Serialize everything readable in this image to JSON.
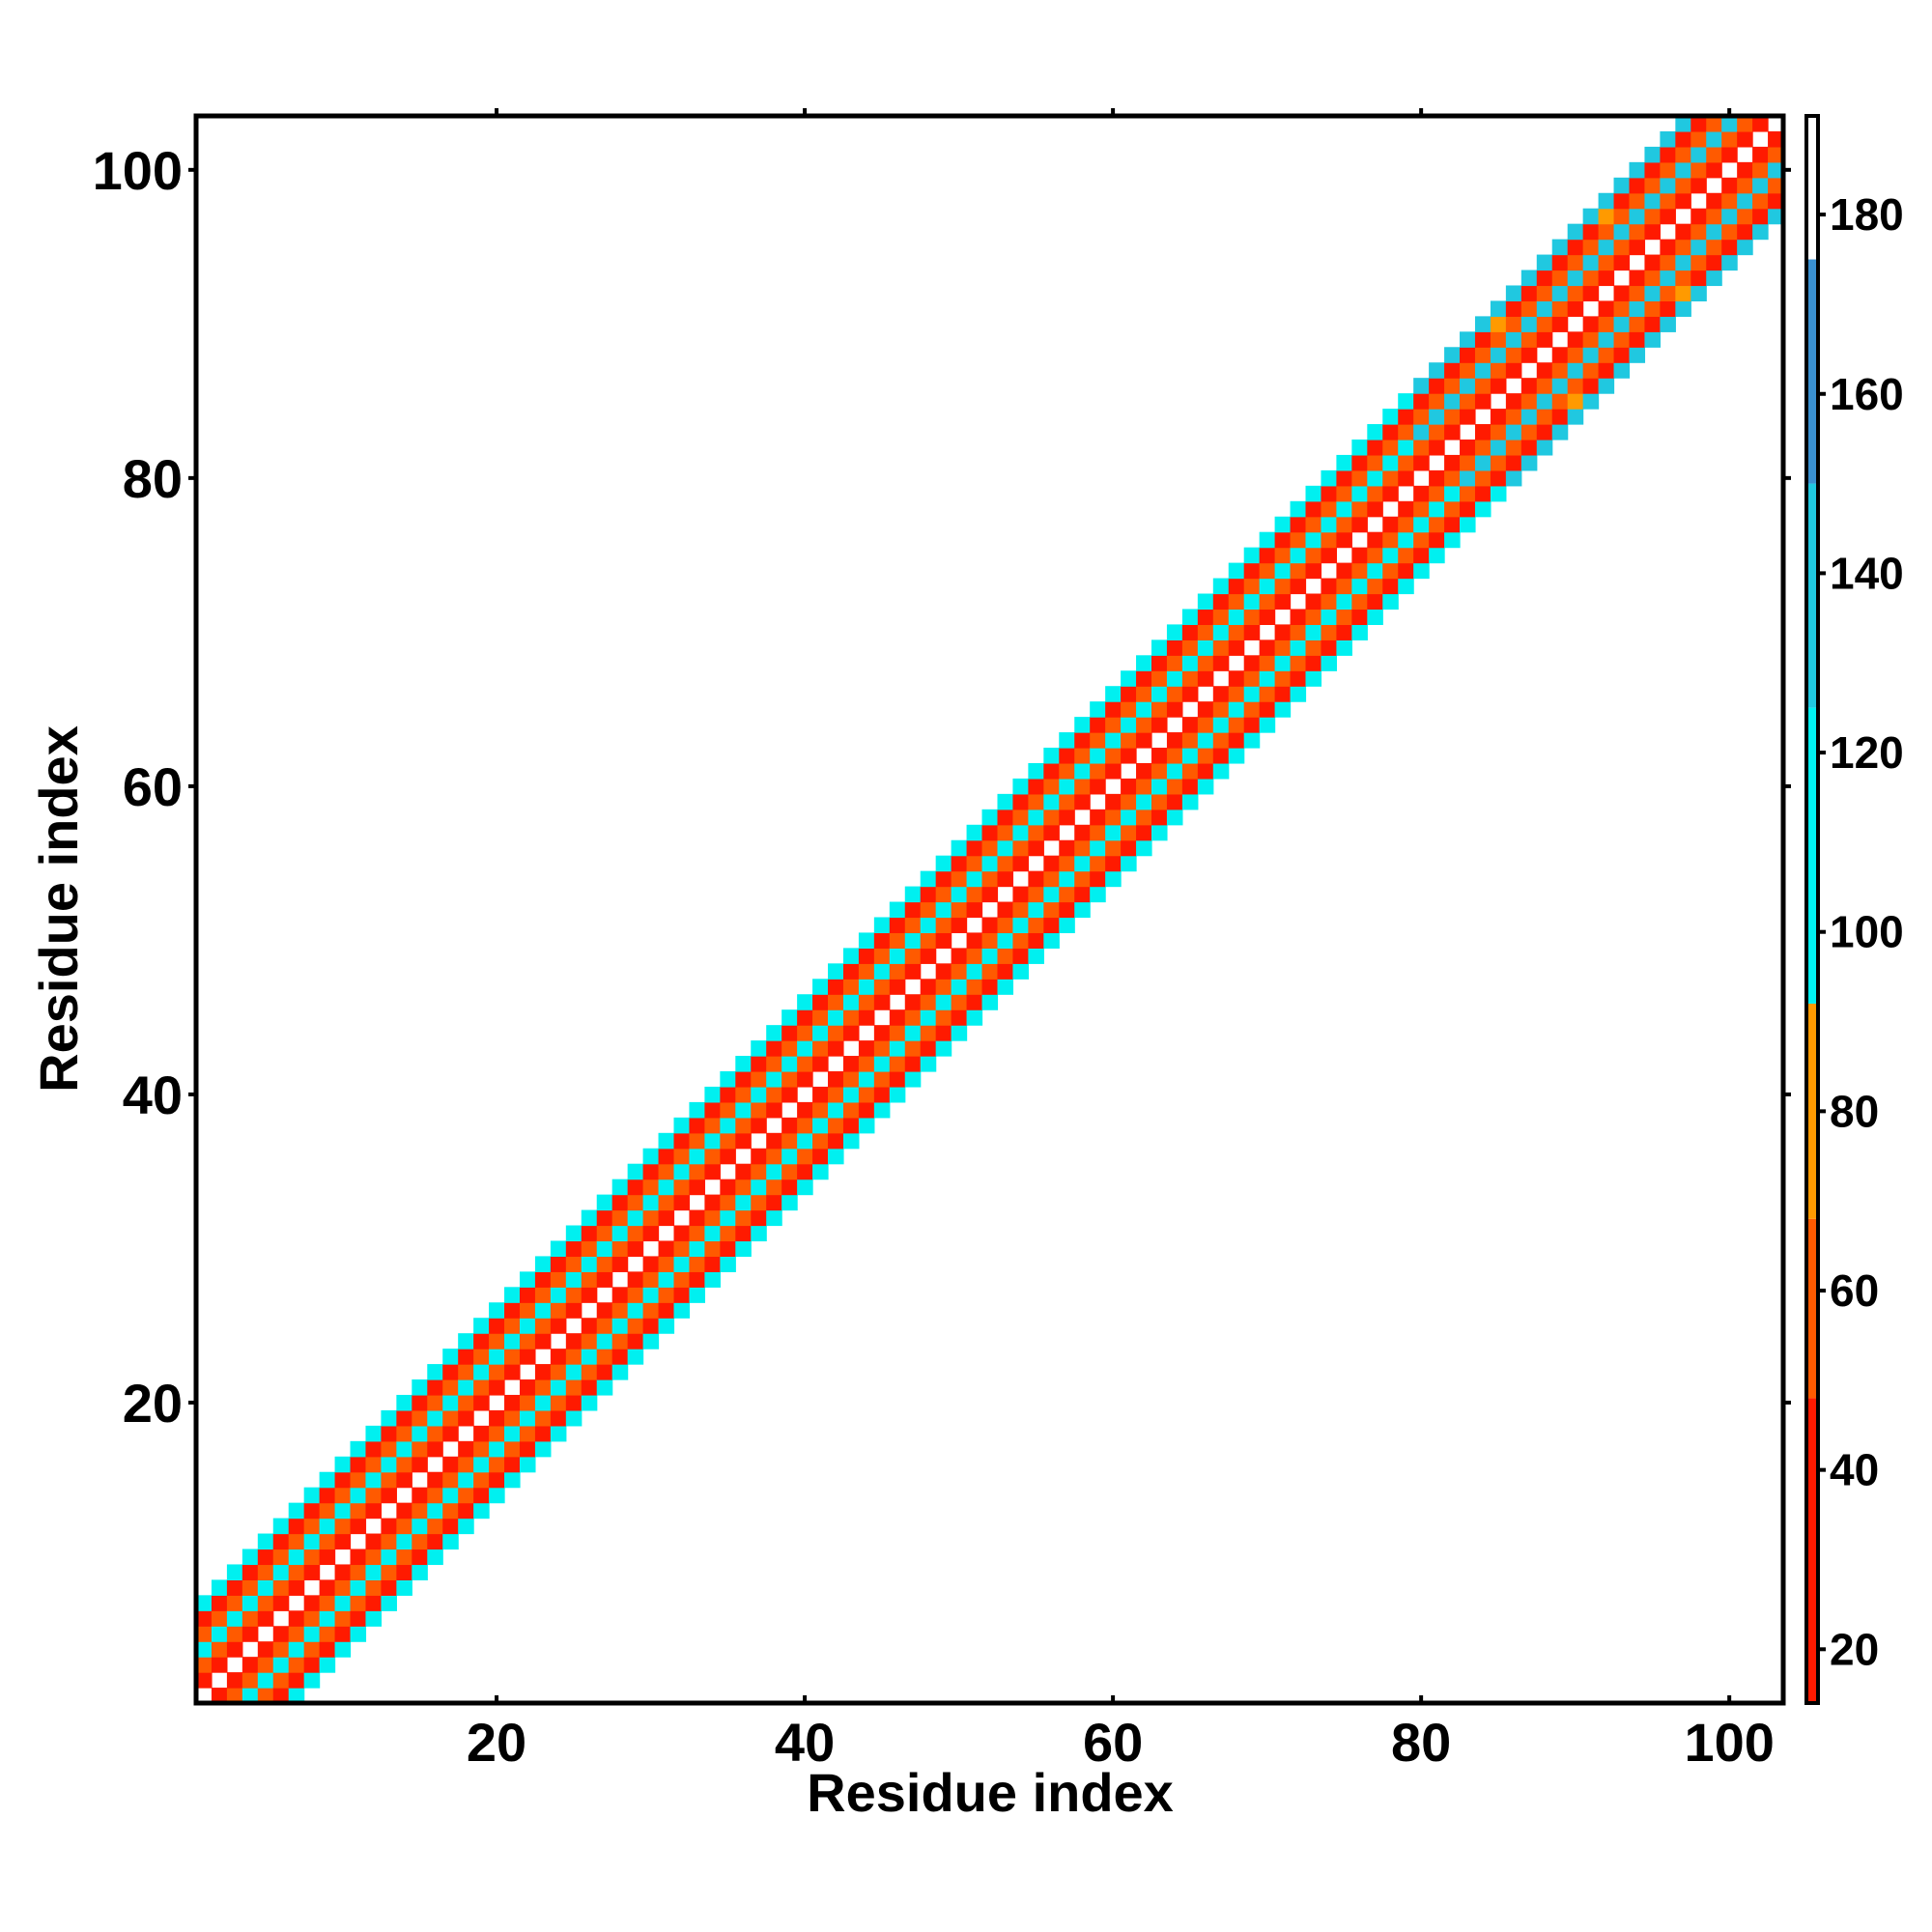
{
  "chart_data": {
    "type": "heatmap",
    "title": "",
    "xlabel": "Residue index",
    "ylabel": "Residue index",
    "xlim": [
      0.5,
      103.5
    ],
    "ylim": [
      0.5,
      103.5
    ],
    "x_ticks": [
      20,
      40,
      60,
      80,
      100
    ],
    "y_ticks": [
      20,
      40,
      60,
      80,
      100
    ],
    "grid": false,
    "matrix_size": 103,
    "band": {
      "description_of_values": "contact map of |i-j| distance bands along the diagonal",
      "diagonal_value": 190,
      "band_width_residues": 6,
      "offset_values": {
        "0": 190,
        "1": 25,
        "2": 55,
        "3": 110,
        "4": 55,
        "5": 25,
        "6": 110
      },
      "irregular_region_residues": [
        80,
        103
      ]
    },
    "colorbar": {
      "ticks": [
        20,
        40,
        60,
        80,
        100,
        120,
        140,
        160,
        180
      ],
      "range": [
        14,
        191
      ],
      "segments": [
        {
          "from": 14,
          "to": 48,
          "color": "#ff1a00"
        },
        {
          "from": 48,
          "to": 68,
          "color": "#ff5a00"
        },
        {
          "from": 68,
          "to": 92,
          "color": "#ff9a00"
        },
        {
          "from": 92,
          "to": 125,
          "color": "#00f0f0"
        },
        {
          "from": 125,
          "to": 150,
          "color": "#20c8e0"
        },
        {
          "from": 150,
          "to": 175,
          "color": "#3a90d0"
        },
        {
          "from": 175,
          "to": 191,
          "color": "#ffffff"
        }
      ]
    }
  }
}
